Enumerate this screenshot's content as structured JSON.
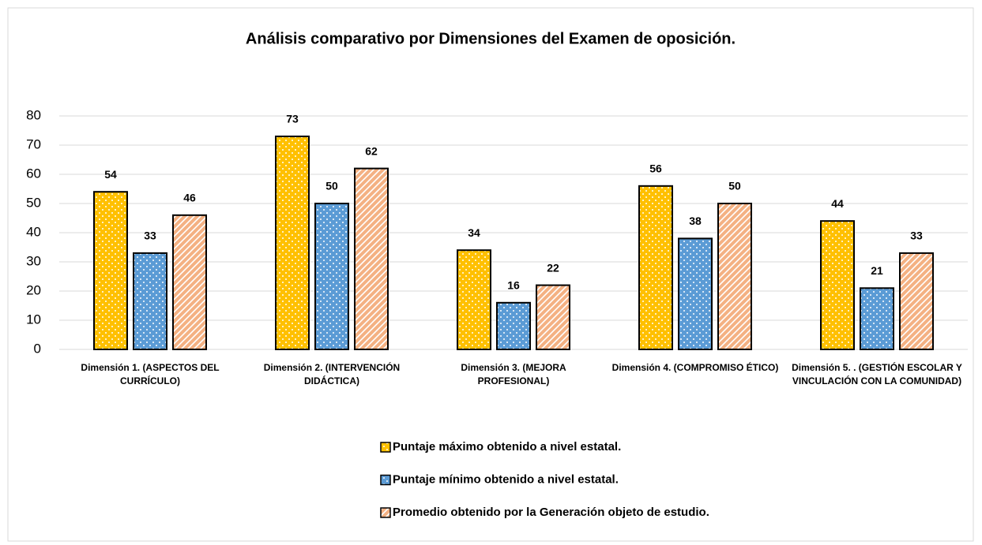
{
  "chart_data": {
    "type": "bar",
    "title": "Análisis comparativo por Dimensiones del Examen de oposición.",
    "categories": [
      "Dimensión 1. (ASPECTOS DEL CURRÍCULO)",
      "Dimensión 2.  (INTERVENCIÓN DIDÁCTICA)",
      "Dimensión 3.  (MEJORA PROFESIONAL)",
      "Dimensión 4.  (COMPROMISO ÉTICO)",
      "Dimensión 5. . (GESTIÓN ESCOLAR Y VINCULACIÓN CON LA COMUNIDAD)"
    ],
    "series": [
      {
        "name": "Puntaje máximo obtenido a nivel estatal.",
        "color": "#ffc000",
        "pattern": "dots",
        "values": [
          54,
          73,
          34,
          56,
          44
        ]
      },
      {
        "name": "Puntaje mínimo obtenido a nivel estatal.",
        "color": "#5b9bd5",
        "pattern": "dots",
        "values": [
          33,
          50,
          16,
          38,
          21
        ]
      },
      {
        "name": "Promedio obtenido por la Generación objeto de estudio.",
        "color": "#f4b183",
        "pattern": "stripes",
        "values": [
          46,
          62,
          22,
          50,
          33
        ]
      }
    ],
    "ylim": [
      0,
      80
    ],
    "yticks": [
      0,
      10,
      20,
      30,
      40,
      50,
      60,
      70,
      80
    ],
    "grid": true,
    "legend": "bottom"
  }
}
